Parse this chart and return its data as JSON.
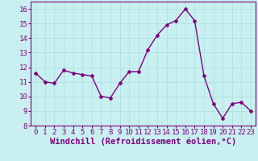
{
  "x": [
    0,
    1,
    2,
    3,
    4,
    5,
    6,
    7,
    8,
    9,
    10,
    11,
    12,
    13,
    14,
    15,
    16,
    17,
    18,
    19,
    20,
    21,
    22,
    23
  ],
  "y": [
    11.6,
    11.0,
    10.9,
    11.8,
    11.6,
    11.5,
    11.4,
    10.0,
    9.9,
    10.9,
    11.7,
    11.7,
    13.2,
    14.2,
    14.9,
    15.2,
    16.0,
    15.2,
    11.4,
    9.5,
    8.5,
    9.5,
    9.6,
    9.0
  ],
  "line_color": "#800080",
  "marker": "D",
  "marker_size": 2,
  "bg_color": "#c8f0f0",
  "grid_color": "#aadddd",
  "xlabel": "Windchill (Refroidissement éolien,°C)",
  "xlabel_color": "#800080",
  "tick_color": "#800080",
  "ylim": [
    8,
    16.5
  ],
  "yticks": [
    8,
    9,
    10,
    11,
    12,
    13,
    14,
    15,
    16
  ],
  "xlim": [
    -0.5,
    23.5
  ],
  "xticks": [
    0,
    1,
    2,
    3,
    4,
    5,
    6,
    7,
    8,
    9,
    10,
    11,
    12,
    13,
    14,
    15,
    16,
    17,
    18,
    19,
    20,
    21,
    22,
    23
  ],
  "linewidth": 1.0,
  "font_size": 6.5,
  "xlabel_fontsize": 7.5
}
